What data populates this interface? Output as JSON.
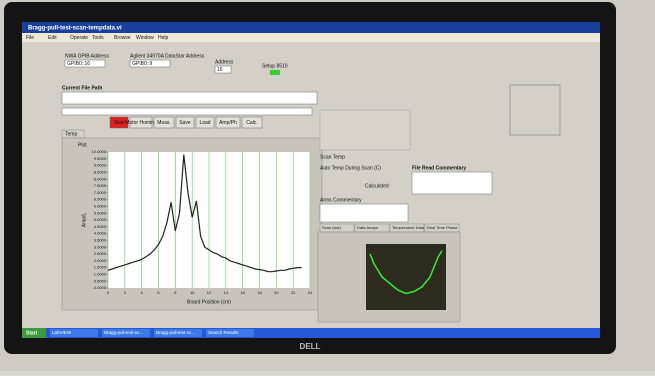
{
  "window": {
    "title": "Bragg-pull-test-scan-tempdata.vi",
    "menu": [
      "File",
      "Edit",
      "Operate",
      "Tools",
      "Browse",
      "Window",
      "Help"
    ]
  },
  "controls": {
    "nwa_label": "NWA GPIB Address",
    "nwa_value": "GPIB0::16",
    "agilent_label": "Agilent 34970A DataStar Address",
    "agilent_value": "GPIB0::9",
    "address_label": "Address",
    "address_value": "16",
    "setup_label": "Setup 8510",
    "file_path_label": "Current File Path",
    "buttons": [
      "Stop",
      "Motor Homing",
      "Meas.",
      "Save",
      "Load",
      "Amp/Ph",
      "Calc."
    ],
    "tab": "Temp",
    "plot_label": "Plot"
  },
  "graph": {
    "y_label": "Amp/L",
    "x_label": "Board Position (cm)",
    "ylim": [
      0,
      10
    ],
    "yticks": [
      {
        "value": 0,
        "label": "0.0000"
      },
      {
        "value": 0.5,
        "label": "0.5000"
      },
      {
        "value": 1,
        "label": "1.0000"
      },
      {
        "value": 1.5,
        "label": "1.5000"
      },
      {
        "value": 2,
        "label": "2.0000"
      },
      {
        "value": 2.5,
        "label": "2.5000"
      },
      {
        "value": 3,
        "label": "3.0000"
      },
      {
        "value": 3.5,
        "label": "3.5000"
      },
      {
        "value": 4,
        "label": "4.0000"
      },
      {
        "value": 4.5,
        "label": "4.5000"
      },
      {
        "value": 5,
        "label": "5.0000"
      },
      {
        "value": 5.5,
        "label": "5.5000"
      },
      {
        "value": 6,
        "label": "6.0000"
      },
      {
        "value": 6.5,
        "label": "6.5000"
      },
      {
        "value": 7,
        "label": "7.0000"
      },
      {
        "value": 7.5,
        "label": "7.5000"
      },
      {
        "value": 8,
        "label": "8.0000"
      },
      {
        "value": 8.5,
        "label": "8.5000"
      },
      {
        "value": 9,
        "label": "9.0000"
      },
      {
        "value": 9.5,
        "label": "9.5000"
      },
      {
        "value": 10,
        "label": "10.0000"
      }
    ],
    "xlim": [
      0,
      24
    ],
    "xticks": [
      0,
      2,
      4,
      6,
      8,
      10,
      12,
      14,
      16,
      18,
      20,
      22,
      24
    ],
    "x": [
      0,
      0.5,
      1,
      1.5,
      2,
      2.5,
      3,
      3.5,
      4,
      4.5,
      5,
      5.5,
      6,
      6.5,
      7,
      7.5,
      8,
      8.5,
      9,
      9.5,
      10,
      10.5,
      11,
      11.5,
      12,
      12.5,
      13,
      13.5,
      14,
      14.5,
      15,
      15.5,
      16,
      16.5,
      17,
      17.5,
      18,
      18.5,
      19,
      19.5,
      20,
      20.5,
      21,
      21.5,
      22,
      22.5,
      23
    ],
    "y": [
      1.3,
      1.4,
      1.5,
      1.6,
      1.7,
      1.8,
      1.9,
      2.0,
      2.1,
      2.3,
      2.5,
      2.8,
      3.2,
      3.8,
      4.8,
      6.3,
      4.2,
      5.5,
      9.8,
      7.0,
      5.2,
      6.4,
      3.8,
      3.0,
      2.8,
      2.6,
      2.5,
      2.3,
      2.2,
      2.0,
      1.9,
      1.8,
      1.7,
      1.6,
      1.5,
      1.4,
      1.35,
      1.3,
      1.2,
      1.2,
      1.25,
      1.3,
      1.3,
      1.4,
      1.45,
      1.5,
      1.5
    ]
  },
  "phase": {
    "xlim": [
      0,
      10
    ],
    "ylim": [
      0,
      10
    ],
    "x": [
      0.5,
      1,
      1.5,
      2,
      3,
      4,
      5,
      6,
      7,
      8,
      8.5,
      9,
      9.5
    ],
    "y": [
      8.5,
      7,
      6,
      5,
      4,
      3,
      2.5,
      2.8,
      3.5,
      5,
      6.5,
      8,
      9
    ]
  },
  "panel": {
    "scan_temp_label": "Scan Temp",
    "file_read_label": "File Read Commentary",
    "auto_temp_label": "Auto Temp During Scan (C)",
    "arms_label": "Arms Commentary",
    "calculated": "Calculated",
    "tabs": [
      "Scan (tick)",
      "Data Arrays",
      "Temperature Data",
      "Real Time Phase"
    ]
  },
  "taskbar": {
    "start": "Start",
    "items": [
      "LabVIEW",
      "Bragg-pull-test-sc...",
      "Bragg-pull-test-sc...",
      "Search Results"
    ]
  },
  "brand": "DELL"
}
